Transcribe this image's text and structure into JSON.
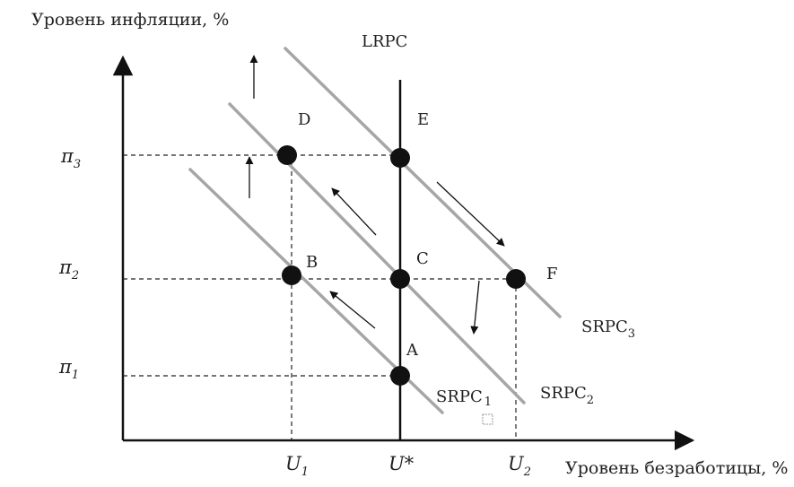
{
  "axes": {
    "y_title": "Уровень инфляции, %",
    "x_title": "Уровень безработицы, %"
  },
  "y_ticks": [
    {
      "id": "pi3",
      "symbol": "π",
      "sub": "3"
    },
    {
      "id": "pi2",
      "symbol": "π",
      "sub": "2"
    },
    {
      "id": "pi1",
      "symbol": "π",
      "sub": "1"
    }
  ],
  "x_ticks": [
    {
      "id": "u1",
      "symbol": "U",
      "sub": "1"
    },
    {
      "id": "ustar",
      "symbol": "U*",
      "sub": ""
    },
    {
      "id": "u2",
      "symbol": "U",
      "sub": "2"
    }
  ],
  "curves": {
    "lrpc": "LRPC",
    "srpc1": {
      "base": "SRPC",
      "sub": "1"
    },
    "srpc2": {
      "base": "SRPC",
      "sub": "2"
    },
    "srpc3": {
      "base": "SRPC",
      "sub": "3"
    }
  },
  "points": {
    "A": "A",
    "B": "B",
    "C": "C",
    "D": "D",
    "E": "E",
    "F": "F"
  },
  "colors": {
    "axis": "#111111",
    "srpc_line": "#a6a6a6",
    "lrpc_line": "#111111",
    "dashed": "#222222",
    "point_fill": "#111111"
  }
}
